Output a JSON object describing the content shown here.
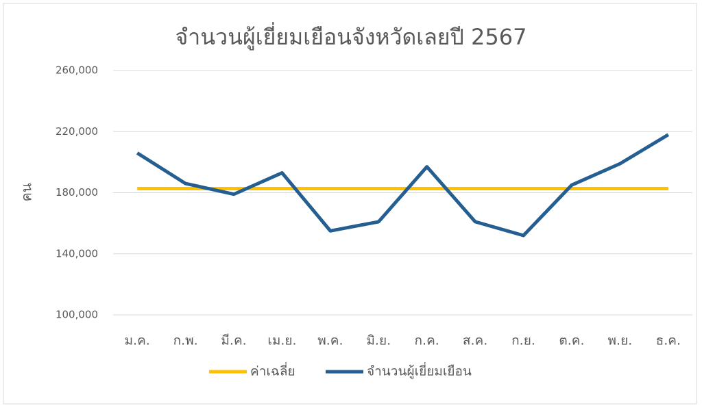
{
  "chart_data": {
    "type": "line",
    "title": "จำนวนผู้เยี่ยมเยือนจังหวัดเลยปี 2567",
    "y_label": "คน",
    "categories": [
      "ม.ค.",
      "ก.พ.",
      "มี.ค.",
      "เม.ย.",
      "พ.ค.",
      "มิ.ย.",
      "ก.ค.",
      "ส.ค.",
      "ก.ย.",
      "ต.ค.",
      "พ.ย.",
      "ธ.ค."
    ],
    "series": [
      {
        "name": "ค่าเฉลี่ย",
        "color": "#ffc000",
        "values": [
          182667,
          182667,
          182667,
          182667,
          182667,
          182667,
          182667,
          182667,
          182667,
          182667,
          182667,
          182667
        ]
      },
      {
        "name": "จำนวนผู้เยี่ยมเยือน",
        "color": "#255e91",
        "values": [
          206000,
          186000,
          179000,
          193000,
          155000,
          161000,
          197000,
          161000,
          152000,
          185000,
          199000,
          218000
        ]
      }
    ],
    "ylim": [
      100000,
      260000
    ],
    "yticks": [
      {
        "value": 100000,
        "label": "100,000"
      },
      {
        "value": 140000,
        "label": "140,000"
      },
      {
        "value": 180000,
        "label": "180,000"
      },
      {
        "value": 220000,
        "label": "220,000"
      },
      {
        "value": 260000,
        "label": "260,000"
      }
    ],
    "grid": true,
    "legend": "bottom"
  }
}
